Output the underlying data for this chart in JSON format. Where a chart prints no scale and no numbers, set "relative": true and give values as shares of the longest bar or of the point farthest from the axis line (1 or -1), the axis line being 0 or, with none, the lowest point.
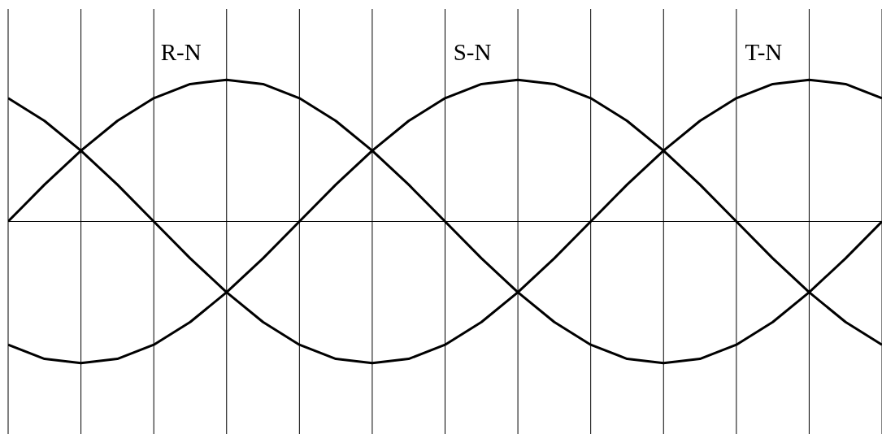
{
  "chart_data": {
    "type": "line",
    "relative": true,
    "grid": "x",
    "tick_labels": false,
    "categories": [
      null,
      null,
      null,
      null,
      null,
      null,
      null,
      null,
      null,
      null,
      null,
      null,
      null,
      null,
      null,
      null,
      null,
      null,
      null,
      null,
      null,
      null,
      null,
      null,
      null
    ],
    "series": [
      {
        "name": "R-N",
        "color": "#000000",
        "values": [
          0,
          0.26,
          0.5,
          0.71,
          0.87,
          0.97,
          1,
          0.97,
          0.87,
          0.71,
          0.5,
          0.26,
          0,
          -0.26,
          -0.5,
          -0.71,
          -0.87,
          -0.97,
          -1,
          -0.97,
          -0.87,
          -0.71,
          -0.5,
          -0.26,
          0
        ]
      },
      {
        "name": "S-N",
        "color": "#000000",
        "values": [
          -0.87,
          -0.97,
          -1,
          -0.97,
          -0.87,
          -0.71,
          -0.5,
          -0.26,
          0,
          0.26,
          0.5,
          0.71,
          0.87,
          0.97,
          1,
          0.97,
          0.87,
          0.71,
          0.5,
          0.26,
          0,
          -0.26,
          -0.5,
          -0.71,
          -0.87
        ]
      },
      {
        "name": "T-N",
        "color": "#000000",
        "values": [
          0.87,
          0.71,
          0.5,
          0.26,
          0,
          -0.26,
          -0.5,
          -0.71,
          -0.87,
          -0.97,
          -1,
          -0.97,
          -0.87,
          -0.71,
          -0.5,
          -0.26,
          0,
          0.26,
          0.5,
          0.71,
          0.87,
          0.97,
          1,
          0.97,
          0.87
        ]
      }
    ]
  }
}
